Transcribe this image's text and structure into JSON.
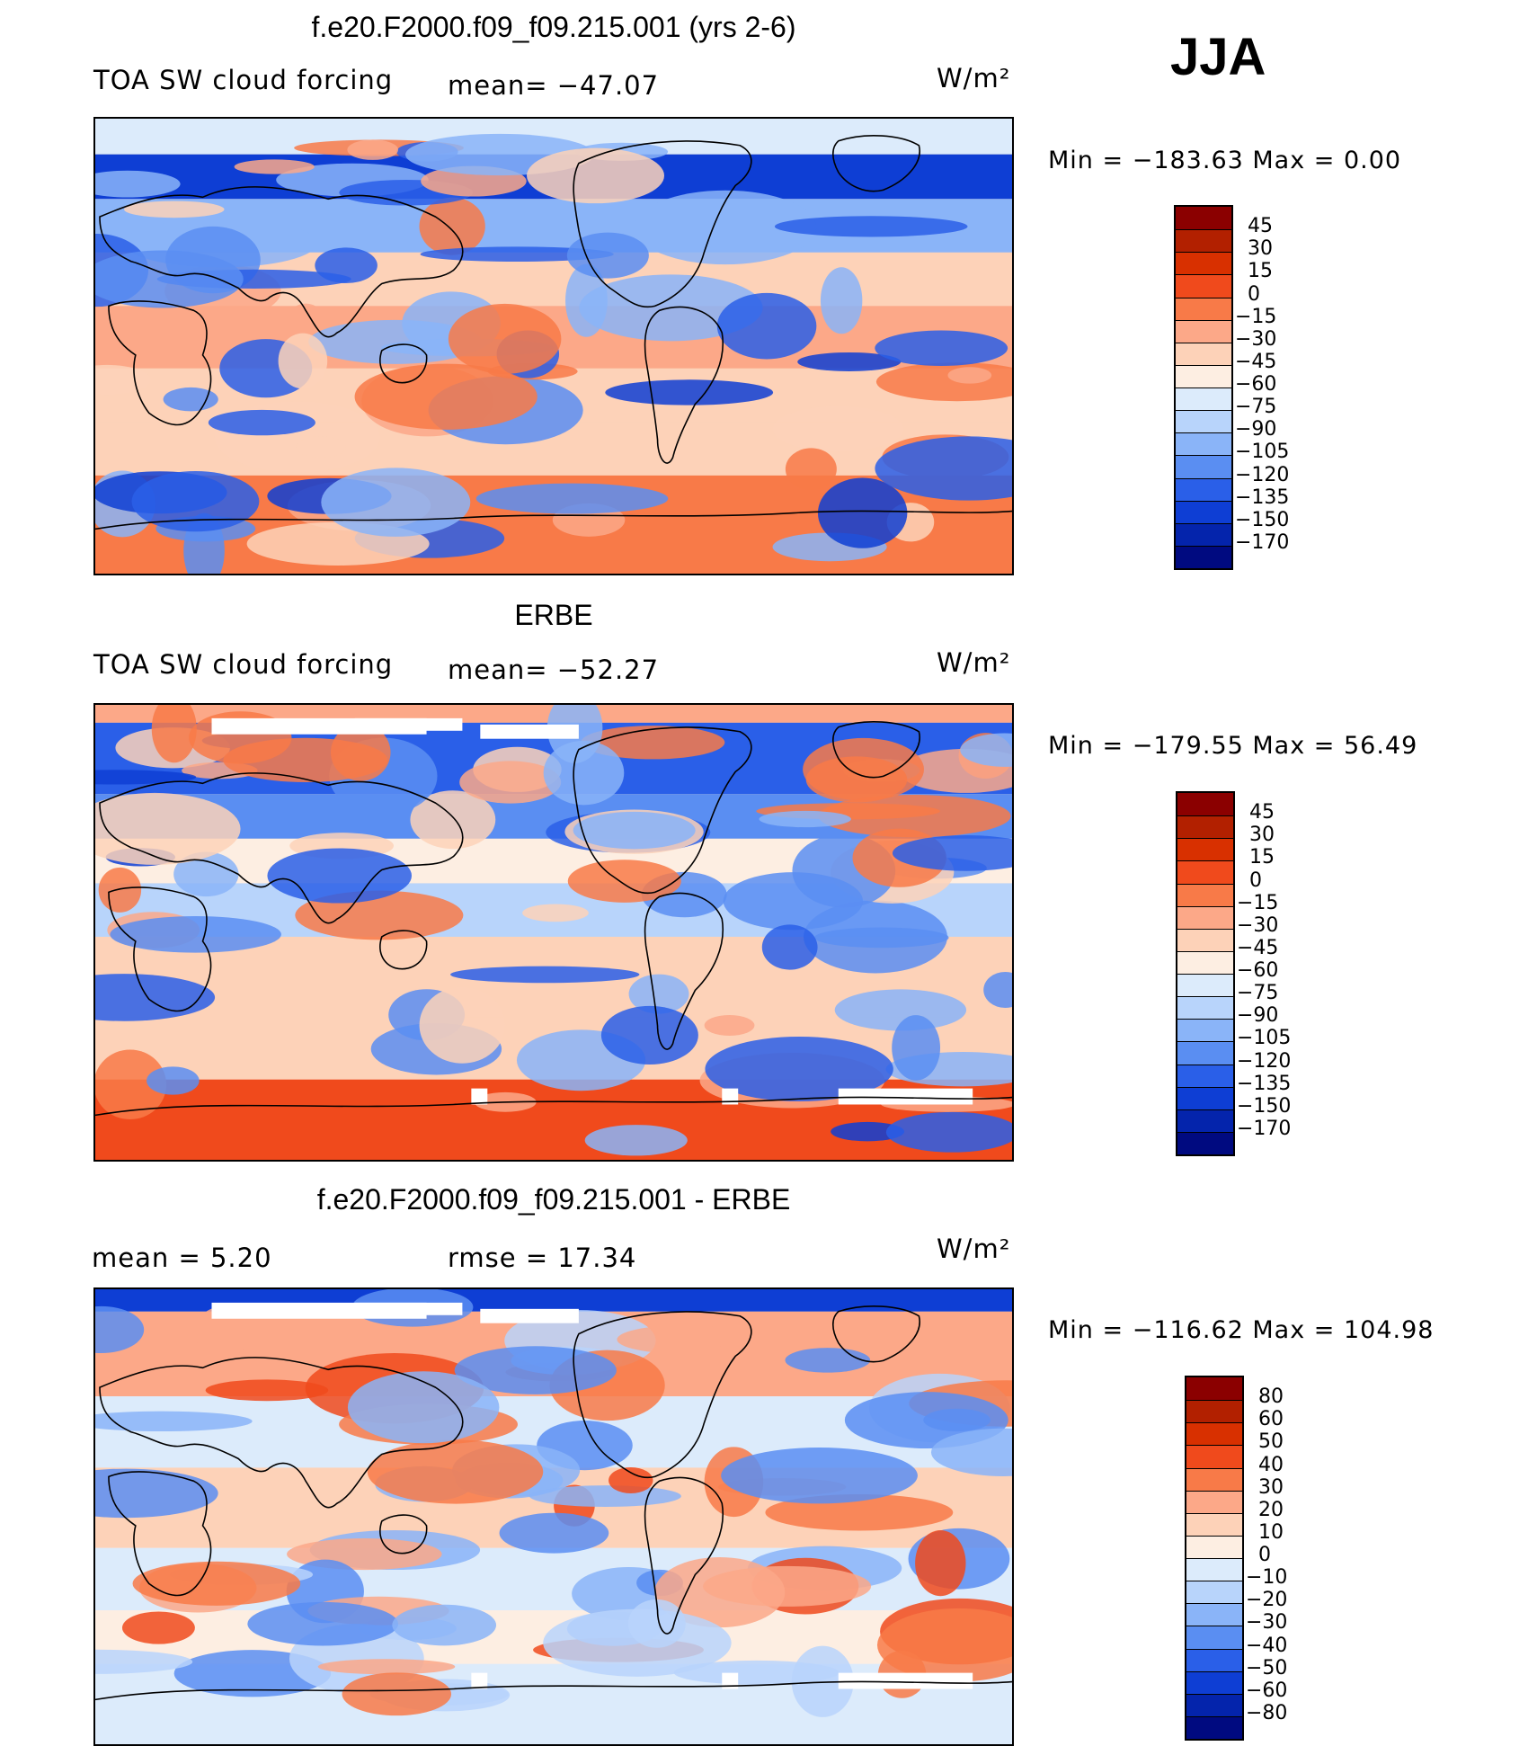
{
  "season": "JJA",
  "panels": [
    {
      "title": "f.e20.F2000.f09_f09.215.001 (yrs 2-6)",
      "left_label": "TOA SW cloud forcing",
      "center_label": "mean= −47.07",
      "units": "W/m²",
      "minmax": "Min  =  −183.63  Max  =     0.00",
      "colorbar": {
        "ticks": [
          "45",
          "30",
          "15",
          "0",
          "−15",
          "−30",
          "−45",
          "−60",
          "−75",
          "−90",
          "−105",
          "−120",
          "−135",
          "−150",
          "−170"
        ],
        "colors": [
          "#8b0000",
          "#b22000",
          "#d83000",
          "#f04a1c",
          "#f87a48",
          "#fca888",
          "#fdd2b8",
          "#fdeee2",
          "#dcebfb",
          "#b8d4fb",
          "#8ab4f8",
          "#5a8ef2",
          "#2a5fe8",
          "#0e3ed4",
          "#0424ac",
          "#000a80"
        ]
      },
      "map_style": "model"
    },
    {
      "title": "ERBE",
      "left_label": "TOA SW cloud forcing",
      "center_label": "mean= −52.27",
      "units": "W/m²",
      "minmax": "Min  =  −179.55  Max  =    56.49",
      "colorbar": {
        "ticks": [
          "45",
          "30",
          "15",
          "0",
          "−15",
          "−30",
          "−45",
          "−60",
          "−75",
          "−90",
          "−105",
          "−120",
          "−135",
          "−150",
          "−170"
        ],
        "colors": [
          "#8b0000",
          "#b22000",
          "#d83000",
          "#f04a1c",
          "#f87a48",
          "#fca888",
          "#fdd2b8",
          "#fdeee2",
          "#dcebfb",
          "#b8d4fb",
          "#8ab4f8",
          "#5a8ef2",
          "#2a5fe8",
          "#0e3ed4",
          "#0424ac",
          "#000a80"
        ]
      },
      "map_style": "obs"
    },
    {
      "title": "f.e20.F2000.f09_f09.215.001 - ERBE",
      "left_label": "mean =      5.20",
      "center_label": "rmse  =    17.34",
      "units": "W/m²",
      "minmax": "Min  =  −116.62  Max  =  104.98",
      "colorbar": {
        "ticks": [
          "80",
          "60",
          "50",
          "40",
          "30",
          "20",
          "10",
          "0",
          "−10",
          "−20",
          "−30",
          "−40",
          "−50",
          "−60",
          "−80"
        ],
        "colors": [
          "#8b0000",
          "#b22000",
          "#d83000",
          "#f04a1c",
          "#f87a48",
          "#fca888",
          "#fdd2b8",
          "#fdeee2",
          "#dcebfb",
          "#b8d4fb",
          "#8ab4f8",
          "#5a8ef2",
          "#2a5fe8",
          "#0e3ed4",
          "#0424ac",
          "#000a80"
        ]
      },
      "map_style": "diff"
    }
  ]
}
